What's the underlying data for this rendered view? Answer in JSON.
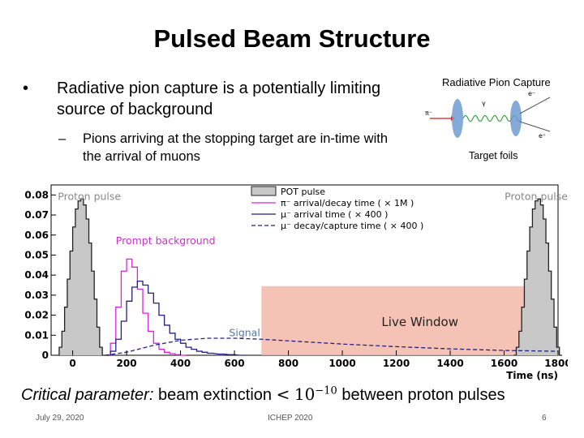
{
  "slide": {
    "title": "Pulsed Beam Structure",
    "bullet_marker": "•",
    "bullet_1": "Radiative pion capture is a potentially limiting source of background",
    "dash_marker": "–",
    "bullet_2": "Pions arriving at the stopping target are in-time with the arrival of muons",
    "critical_prefix": "Critical parameter:",
    "critical_middle": " beam extinction ",
    "critical_lt": "<",
    "critical_base": "10",
    "critical_exp": "−10",
    "critical_suffix": " between proton pulses"
  },
  "inset": {
    "title": "Radiative Pion Capture",
    "footer": "Target foils",
    "label_pi": "π⁻",
    "label_gamma": "γ",
    "label_e_minus": "e⁻",
    "label_e_plus": "e⁺",
    "colors": {
      "foil": "#6f9bd1",
      "photon": "#3aa63a",
      "arrow": "#cc2222"
    }
  },
  "footer": {
    "date": "July 29, 2020",
    "conference": "ICHEP 2020",
    "page": "6"
  },
  "chart_data": {
    "type": "line",
    "xlabel": "Time (ns)",
    "xlim": [
      -80,
      1800
    ],
    "ylim": [
      0,
      0.085
    ],
    "x_ticks": [
      0,
      200,
      400,
      600,
      800,
      1000,
      1200,
      1400,
      1600,
      1800
    ],
    "y_ticks": [
      0,
      0.01,
      0.02,
      0.03,
      0.04,
      0.05,
      0.06,
      0.07,
      0.08
    ],
    "y_tick_labels": [
      "0",
      "0.01",
      "0.02",
      "0.03",
      "0.04",
      "0.05",
      "0.06",
      "0.07",
      "0.08"
    ],
    "legend_position": "top-center",
    "live_window": {
      "label": "Live Window",
      "x_range": [
        700,
        1695
      ],
      "y_top": 0.0345,
      "color": "#f3b8a8"
    },
    "annotations": [
      {
        "text": "Proton pulse",
        "x": -55,
        "y": 0.0775,
        "color": "#888888"
      },
      {
        "text": "Proton pulse",
        "x": 1602,
        "y": 0.0775,
        "color": "#888888"
      },
      {
        "text": "Prompt background",
        "x": 160,
        "y": 0.0555,
        "color": "#cc33cc"
      },
      {
        "text": "Signal",
        "x": 580,
        "y": 0.0095,
        "color": "#5577aa"
      }
    ],
    "series": [
      {
        "name": "POT pulse",
        "style": "filled-histogram",
        "color": "#222222",
        "fill": "#c8c8c8",
        "x": [
          -60,
          -50,
          -40,
          -30,
          -20,
          -10,
          0,
          10,
          20,
          30,
          40,
          50,
          60,
          70,
          80,
          90,
          100,
          110
        ],
        "values": [
          0.0,
          0.004,
          0.012,
          0.024,
          0.038,
          0.052,
          0.064,
          0.073,
          0.077,
          0.078,
          0.075,
          0.068,
          0.056,
          0.042,
          0.028,
          0.014,
          0.004,
          0.0
        ]
      },
      {
        "name": "POT pulse (next)",
        "style": "filled-histogram",
        "color": "#222222",
        "fill": "#c8c8c8",
        "x": [
          1635,
          1645,
          1655,
          1665,
          1675,
          1685,
          1695,
          1705,
          1715,
          1725,
          1735,
          1745,
          1755,
          1765,
          1775,
          1785,
          1795,
          1805
        ],
        "values": [
          0.0,
          0.004,
          0.012,
          0.024,
          0.038,
          0.052,
          0.064,
          0.073,
          0.077,
          0.078,
          0.075,
          0.068,
          0.056,
          0.042,
          0.028,
          0.014,
          0.004,
          0.0
        ]
      },
      {
        "name": "π⁻ arrival/decay time ( × 1M )",
        "style": "histogram",
        "color": "#dd22dd",
        "x": [
          120,
          140,
          160,
          180,
          200,
          220,
          240,
          260,
          280,
          300,
          320,
          340,
          360,
          380,
          400
        ],
        "values": [
          0.0,
          0.006,
          0.024,
          0.042,
          0.048,
          0.044,
          0.033,
          0.021,
          0.012,
          0.006,
          0.003,
          0.0015,
          0.0008,
          0.0003,
          0.0
        ]
      },
      {
        "name": "μ⁻ arrival time ( × 400 )",
        "style": "histogram",
        "color": "#202088",
        "x": [
          120,
          140,
          160,
          180,
          200,
          220,
          240,
          260,
          280,
          300,
          320,
          340,
          360,
          380,
          400,
          420,
          440,
          460,
          480,
          500,
          540,
          580,
          620
        ],
        "values": [
          0.0,
          0.002,
          0.008,
          0.017,
          0.027,
          0.034,
          0.037,
          0.035,
          0.031,
          0.026,
          0.02,
          0.015,
          0.011,
          0.008,
          0.006,
          0.004,
          0.003,
          0.002,
          0.0015,
          0.001,
          0.0006,
          0.0003,
          0.0
        ]
      },
      {
        "name": "μ⁻ decay/capture time ( × 400 )",
        "style": "dashed",
        "color": "#202088",
        "x": [
          120,
          200,
          300,
          400,
          500,
          600,
          700,
          800,
          900,
          1000,
          1200,
          1400,
          1600,
          1700,
          1800
        ],
        "values": [
          0.0,
          0.0015,
          0.005,
          0.0075,
          0.0085,
          0.0085,
          0.008,
          0.0072,
          0.0064,
          0.0056,
          0.0043,
          0.0032,
          0.0024,
          0.0022,
          0.002
        ]
      }
    ]
  }
}
